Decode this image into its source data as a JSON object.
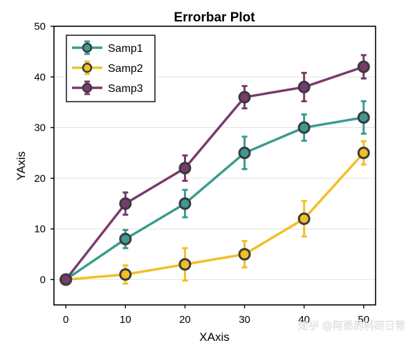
{
  "chart_data": {
    "type": "line",
    "title": "Errorbar Plot",
    "xlabel": "XAxis",
    "ylabel": "YAxis",
    "x": [
      0,
      10,
      20,
      30,
      40,
      50
    ],
    "xlim": [
      -2,
      52
    ],
    "ylim": [
      -5,
      50
    ],
    "xticks": [
      0,
      10,
      20,
      30,
      40,
      50
    ],
    "yticks": [
      0,
      10,
      20,
      30,
      40,
      50
    ],
    "grid": "horizontal",
    "legend_position": "top-left",
    "series": [
      {
        "name": "Samp1",
        "color": "#3a9b8f",
        "values": [
          0,
          8,
          15,
          25,
          30,
          32
        ],
        "errors": [
          0,
          1.8,
          2.7,
          3.2,
          2.6,
          3.2
        ]
      },
      {
        "name": "Samp2",
        "color": "#f2bf26",
        "values": [
          0,
          1,
          3,
          5,
          12,
          25
        ],
        "errors": [
          0,
          1.8,
          3.2,
          2.6,
          3.5,
          2.3
        ]
      },
      {
        "name": "Samp3",
        "color": "#783b6e",
        "values": [
          0,
          15,
          22,
          36,
          38,
          42
        ],
        "errors": [
          0,
          2.2,
          2.5,
          2.2,
          2.8,
          2.3
        ]
      }
    ]
  },
  "watermark": "知乎 @阿昆的科研日常"
}
